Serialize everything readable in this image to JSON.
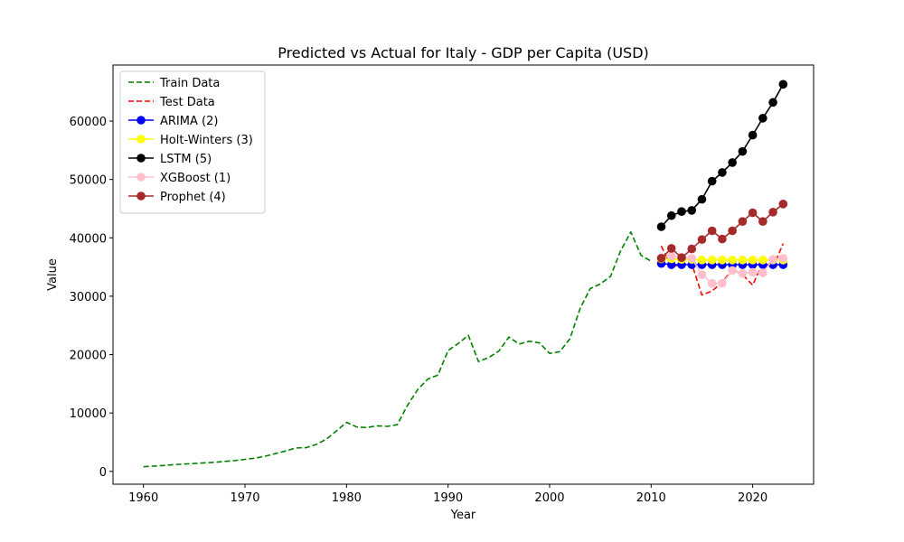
{
  "chart_data": {
    "type": "line",
    "title": "Predicted vs Actual for Italy - GDP per Capita (USD)",
    "xlabel": "Year",
    "ylabel": "Value",
    "xlim": [
      1957,
      2026
    ],
    "ylim": [
      -2200,
      69600
    ],
    "xticks": [
      1960,
      1970,
      1980,
      1990,
      2000,
      2010,
      2020
    ],
    "yticks": [
      0,
      10000,
      20000,
      30000,
      40000,
      50000,
      60000
    ],
    "grid": false,
    "legend_position": "top-left",
    "series": [
      {
        "name": "Train Data",
        "color": "#008000",
        "dashed": true,
        "marker": false,
        "x": [
          1960,
          1961,
          1962,
          1963,
          1964,
          1965,
          1966,
          1967,
          1968,
          1969,
          1970,
          1971,
          1972,
          1973,
          1974,
          1975,
          1976,
          1977,
          1978,
          1979,
          1980,
          1981,
          1982,
          1983,
          1984,
          1985,
          1986,
          1987,
          1988,
          1989,
          1990,
          1991,
          1992,
          1993,
          1994,
          1995,
          1996,
          1997,
          1998,
          1999,
          2000,
          2001,
          2002,
          2003,
          2004,
          2005,
          2006,
          2007,
          2008,
          2009,
          2010
        ],
        "y": [
          800,
          900,
          1000,
          1150,
          1250,
          1350,
          1450,
          1550,
          1700,
          1850,
          2050,
          2250,
          2600,
          3050,
          3500,
          4000,
          4050,
          4600,
          5500,
          6900,
          8400,
          7600,
          7500,
          7800,
          7700,
          8000,
          11300,
          14000,
          15800,
          16500,
          20700,
          21900,
          23300,
          18800,
          19500,
          20600,
          23000,
          21800,
          22300,
          22000,
          20200,
          20500,
          22700,
          27900,
          31300,
          32100,
          33400,
          37800,
          41000,
          37000,
          36000
        ]
      },
      {
        "name": "Test Data",
        "color": "#ff0000",
        "dashed": true,
        "marker": false,
        "x": [
          2011,
          2012,
          2013,
          2014,
          2015,
          2016,
          2017,
          2018,
          2019,
          2020,
          2021,
          2022,
          2023
        ],
        "y": [
          38600,
          35000,
          35500,
          35600,
          30200,
          30900,
          32400,
          34600,
          33700,
          31900,
          35700,
          34900,
          39000
        ]
      },
      {
        "name": "ARIMA (2)",
        "color": "#0000ff",
        "dashed": false,
        "marker": true,
        "x": [
          2011,
          2012,
          2013,
          2014,
          2015,
          2016,
          2017,
          2018,
          2019,
          2020,
          2021,
          2022,
          2023
        ],
        "y": [
          35600,
          35400,
          35400,
          35400,
          35400,
          35400,
          35400,
          35400,
          35400,
          35400,
          35400,
          35400,
          35400
        ]
      },
      {
        "name": "Holt-Winters (3)",
        "color": "#ffff00",
        "dashed": false,
        "marker": true,
        "x": [
          2011,
          2012,
          2013,
          2014,
          2015,
          2016,
          2017,
          2018,
          2019,
          2020,
          2021,
          2022,
          2023
        ],
        "y": [
          36400,
          36400,
          36300,
          36300,
          36200,
          36200,
          36200,
          36200,
          36200,
          36200,
          36200,
          36200,
          36200
        ]
      },
      {
        "name": "LSTM (5)",
        "color": "#000000",
        "dashed": false,
        "marker": true,
        "x": [
          2011,
          2012,
          2013,
          2014,
          2015,
          2016,
          2017,
          2018,
          2019,
          2020,
          2021,
          2022,
          2023
        ],
        "y": [
          41900,
          43800,
          44500,
          44700,
          46600,
          49700,
          51200,
          52900,
          54800,
          57600,
          60500,
          63200,
          66300
        ]
      },
      {
        "name": "XGBoost (1)",
        "color": "#ffc0cb",
        "dashed": false,
        "marker": true,
        "x": [
          2011,
          2012,
          2013,
          2014,
          2015,
          2016,
          2017,
          2018,
          2019,
          2020,
          2021,
          2022,
          2023
        ],
        "y": [
          36600,
          36900,
          36700,
          36500,
          33700,
          32200,
          32200,
          34400,
          33900,
          34100,
          34000,
          36300,
          36500
        ]
      },
      {
        "name": "Prophet (4)",
        "color": "#a52a2a",
        "dashed": false,
        "marker": true,
        "x": [
          2011,
          2012,
          2013,
          2014,
          2015,
          2016,
          2017,
          2018,
          2019,
          2020,
          2021,
          2022,
          2023
        ],
        "y": [
          36500,
          38200,
          36600,
          38100,
          39700,
          41200,
          39800,
          41200,
          42800,
          44300,
          42800,
          44400,
          45800
        ]
      }
    ]
  }
}
